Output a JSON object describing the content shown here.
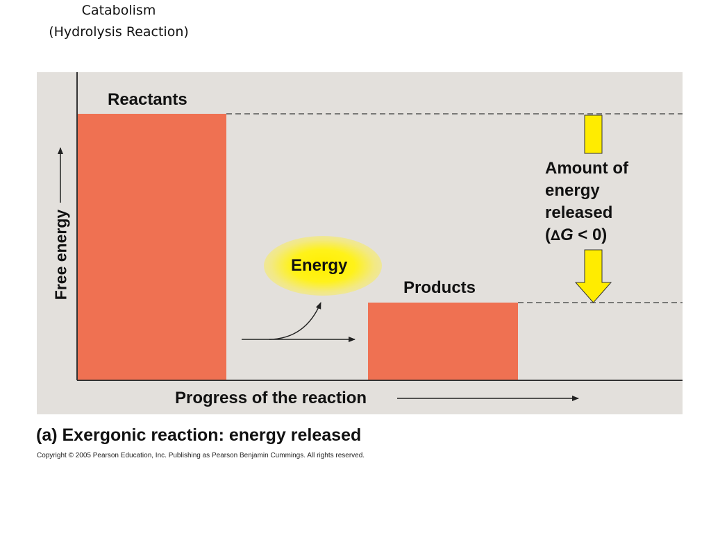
{
  "slide_title": {
    "line1": "Catabolism",
    "line2": "(Hydrolysis Reaction)"
  },
  "diagram": {
    "y_axis_label": "Free energy",
    "x_axis_label": "Progress of the reaction",
    "reactants_label": "Reactants",
    "products_label": "Products",
    "energy_label": "Energy",
    "released_annotation": {
      "line1": "Amount of",
      "line2": "energy",
      "line3": "released",
      "line4_prefix": "(",
      "delta_symbol": "∆",
      "g_symbol": "G",
      "line4_suffix": " < 0)"
    }
  },
  "caption": {
    "panel_letter": "(a)",
    "text": " Exergonic reaction: energy released"
  },
  "copyright": "Copyright © 2005 Pearson Education, Inc. Publishing as Pearson Benjamin Cummings. All rights reserved.",
  "colors": {
    "panel_background": "#e3e0dc",
    "bar_fill": "#ef7152",
    "arrow_yellow": "#ffec00",
    "glow_yellow": "#fff21a"
  }
}
